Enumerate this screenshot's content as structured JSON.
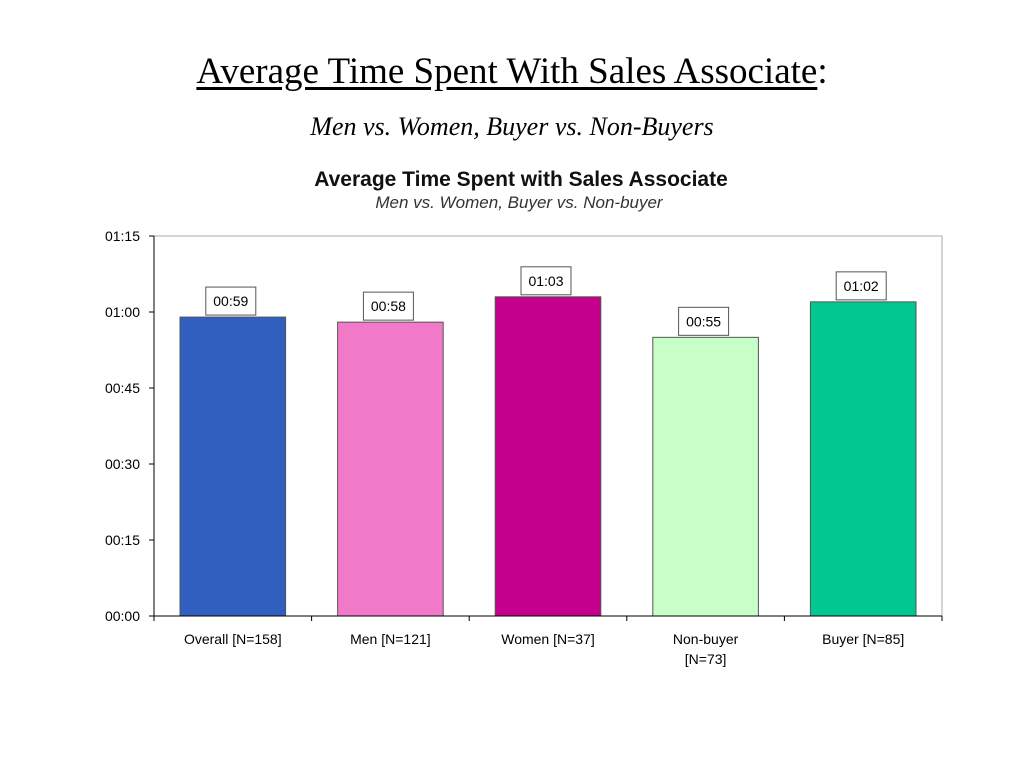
{
  "slide": {
    "title": "Average Time Spent With Sales Associate",
    "title_colon": ":",
    "subtitle": "Men vs. Women, Buyer vs. Non-Buyers"
  },
  "chart_data": {
    "type": "bar",
    "title": "Average Time Spent with Sales Associate",
    "subtitle": "Men vs. Women, Buyer vs. Non-buyer",
    "xlabel": "",
    "ylabel": "",
    "categories": [
      [
        "Overall [N=158]"
      ],
      [
        "Men [N=121]"
      ],
      [
        "Women [N=37]"
      ],
      [
        "Non-buyer",
        "[N=73]"
      ],
      [
        "Buyer [N=85]"
      ]
    ],
    "values_seconds": [
      59,
      58,
      63,
      55,
      62
    ],
    "data_labels": [
      "00:59",
      "00:58",
      "01:03",
      "00:55",
      "01:02"
    ],
    "colors": [
      "#2f5fbf",
      "#f07ac8",
      "#c4008c",
      "#c8ffc8",
      "#00c890"
    ],
    "y_ticks_seconds": [
      0,
      15,
      30,
      45,
      60,
      75
    ],
    "y_tick_labels": [
      "00:00",
      "00:15",
      "00:30",
      "00:45",
      "01:00",
      "01:15"
    ],
    "ylim_seconds": [
      0,
      75
    ],
    "grid": false,
    "legend": "none"
  }
}
